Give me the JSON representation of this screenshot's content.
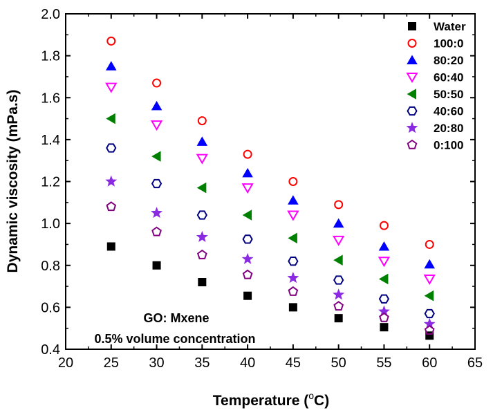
{
  "chart_data": {
    "type": "scatter",
    "title": "",
    "xlabel": "Temperature (",
    "xlabel_degree": "o",
    "xlabel_unit": "C)",
    "ylabel": "Dynamic viscosity (mPa.s)",
    "xlim": [
      20,
      65
    ],
    "ylim": [
      0.4,
      2.0
    ],
    "xticks": [
      20,
      25,
      30,
      35,
      40,
      45,
      50,
      55,
      60,
      65
    ],
    "yticks": [
      "0.4",
      "0.6",
      "0.8",
      "1.0",
      "1.2",
      "1.4",
      "1.6",
      "1.8",
      "2.0"
    ],
    "x": [
      25,
      30,
      35,
      40,
      45,
      50,
      55,
      60
    ],
    "legend_position": "top-right",
    "annotations": [
      "GO: Mxene",
      "0.5% volume concentration"
    ],
    "series": [
      {
        "name": "Water",
        "marker": "square-filled",
        "color": "#000000",
        "values": [
          0.89,
          0.8,
          0.72,
          0.655,
          0.6,
          0.548,
          0.505,
          0.465
        ]
      },
      {
        "name": "100:0",
        "marker": "circle-open",
        "color": "#ff0000",
        "values": [
          1.87,
          1.67,
          1.49,
          1.33,
          1.2,
          1.09,
          0.99,
          0.9
        ]
      },
      {
        "name": "80:20",
        "marker": "triangle-up-filled",
        "color": "#0000ff",
        "values": [
          1.75,
          1.56,
          1.39,
          1.24,
          1.11,
          1.0,
          0.89,
          0.805
        ]
      },
      {
        "name": "60:40",
        "marker": "triangle-down-open",
        "color": "#ff00ff",
        "values": [
          1.65,
          1.47,
          1.31,
          1.17,
          1.04,
          0.92,
          0.82,
          0.735
        ]
      },
      {
        "name": "50:50",
        "marker": "triangle-left-filled",
        "color": "#008000",
        "values": [
          1.5,
          1.32,
          1.17,
          1.04,
          0.93,
          0.825,
          0.735,
          0.655
        ]
      },
      {
        "name": "40:60",
        "marker": "hexagon-open",
        "color": "#000080",
        "values": [
          1.36,
          1.19,
          1.04,
          0.925,
          0.82,
          0.73,
          0.64,
          0.57
        ]
      },
      {
        "name": "20:80",
        "marker": "star-filled",
        "color": "#8a2be2",
        "values": [
          1.2,
          1.05,
          0.935,
          0.83,
          0.74,
          0.66,
          0.58,
          0.52
        ]
      },
      {
        "name": "0:100",
        "marker": "pentagon-open",
        "color": "#800080",
        "values": [
          1.08,
          0.96,
          0.85,
          0.755,
          0.675,
          0.605,
          0.55,
          0.49
        ]
      }
    ]
  }
}
